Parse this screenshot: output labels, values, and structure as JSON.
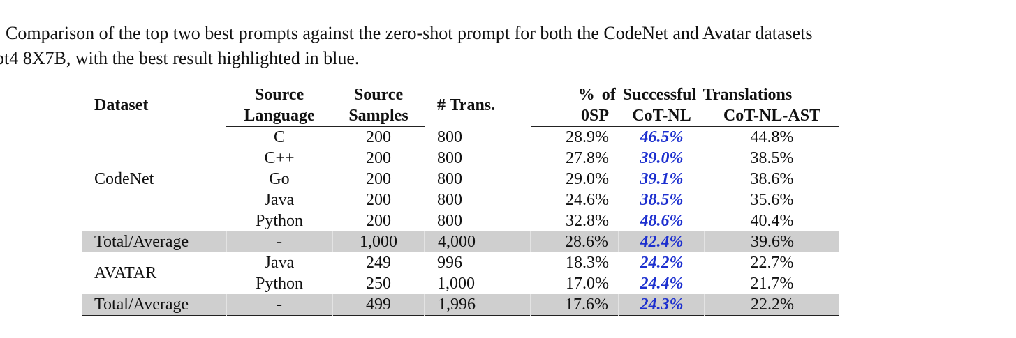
{
  "caption": {
    "line1": "Comparison of the top two best prompts against the zero-shot prompt for both the CodeNet and Avatar datasets",
    "line2": "pt4 8X7B, with the best result highlighted in blue."
  },
  "table": {
    "headers": {
      "dataset": "Dataset",
      "source_language_1": "Source",
      "source_language_2": "Language",
      "source_samples_1": "Source",
      "source_samples_2": "Samples",
      "trans": "# Trans.",
      "group": "% of Successful Translations",
      "zero_shot": "0SP",
      "cot_nl": "CoT-NL",
      "cot_nl_ast": "CoT-NL-AST"
    },
    "codenet": {
      "dataset": "CodeNet",
      "rows": [
        {
          "lang": "C",
          "samples": "200",
          "trans": "800",
          "zsp": "28.9%",
          "cot": "46.5%",
          "ast": "44.8%"
        },
        {
          "lang": "C++",
          "samples": "200",
          "trans": "800",
          "zsp": "27.8%",
          "cot": "39.0%",
          "ast": "38.5%"
        },
        {
          "lang": "Go",
          "samples": "200",
          "trans": "800",
          "zsp": "29.0%",
          "cot": "39.1%",
          "ast": "38.6%"
        },
        {
          "lang": "Java",
          "samples": "200",
          "trans": "800",
          "zsp": "24.6%",
          "cot": "38.5%",
          "ast": "35.6%"
        },
        {
          "lang": "Python",
          "samples": "200",
          "trans": "800",
          "zsp": "32.8%",
          "cot": "48.6%",
          "ast": "40.4%"
        }
      ],
      "total": {
        "label": "Total/Average",
        "lang": "-",
        "samples": "1,000",
        "trans": "4,000",
        "zsp": "28.6%",
        "cot": "42.4%",
        "ast": "39.6%"
      }
    },
    "avatar": {
      "dataset": "AVATAR",
      "rows": [
        {
          "lang": "Java",
          "samples": "249",
          "trans": "996",
          "zsp": "18.3%",
          "cot": "24.2%",
          "ast": "22.7%"
        },
        {
          "lang": "Python",
          "samples": "250",
          "trans": "1,000",
          "zsp": "17.0%",
          "cot": "24.4%",
          "ast": "21.7%"
        }
      ],
      "total": {
        "label": "Total/Average",
        "lang": "-",
        "samples": "499",
        "trans": "1,996",
        "zsp": "17.6%",
        "cot": "24.3%",
        "ast": "22.2%"
      }
    },
    "highlight_color": "#1c2fcf",
    "total_row_bg": "#cfcfcf"
  }
}
